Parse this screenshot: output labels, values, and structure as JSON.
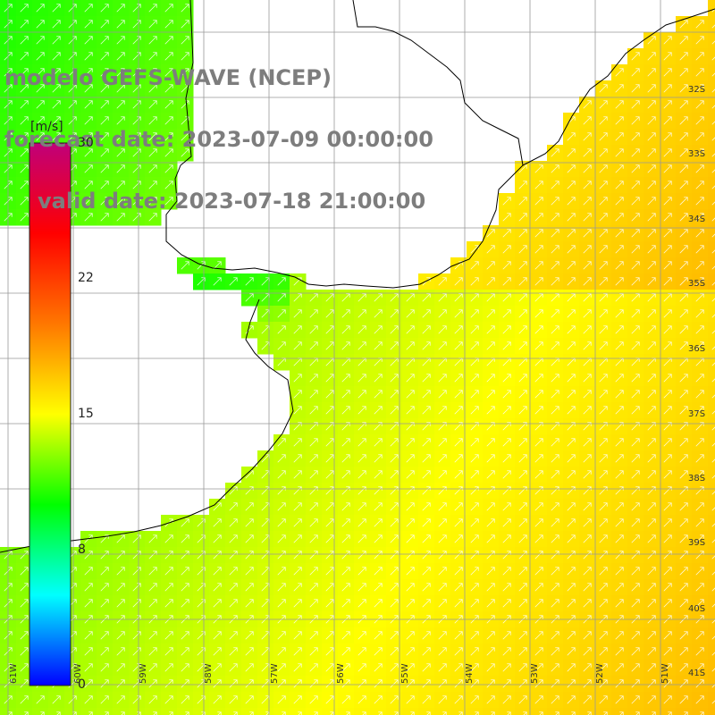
{
  "title": {
    "line1": "modelo GEFS-WAVE (NCEP)",
    "line2": "forecast date: 2023-07-09 00:00:00",
    "line3": "valid date: 2023-07-18 21:00:00"
  },
  "colorbar": {
    "unit": "[m/s]",
    "ticks": [
      "30",
      "22",
      "15",
      "8",
      "0"
    ],
    "tick_values": [
      30,
      22,
      15,
      8,
      0
    ],
    "range": [
      0,
      30
    ],
    "stops": [
      "#0000ff",
      "#00ffff",
      "#00ff00",
      "#ffff00",
      "#ff7700",
      "#ff0000",
      "#c0007a"
    ]
  },
  "map": {
    "lat_labels": [
      "32S",
      "33S",
      "34S",
      "35S",
      "36S",
      "37S",
      "38S",
      "39S",
      "40S",
      "41S"
    ],
    "lon_labels": [
      "61W",
      "60W",
      "59W",
      "58W",
      "57W",
      "56W",
      "55W",
      "54W",
      "53W",
      "52W",
      "51W"
    ],
    "field": "wind speed",
    "arrow_direction": "northeast",
    "colors": {
      "land": "#ffffff",
      "coast": "#000000",
      "grid": "#999999",
      "arrows": "#ffffff",
      "title": "#7d7d7d"
    }
  }
}
